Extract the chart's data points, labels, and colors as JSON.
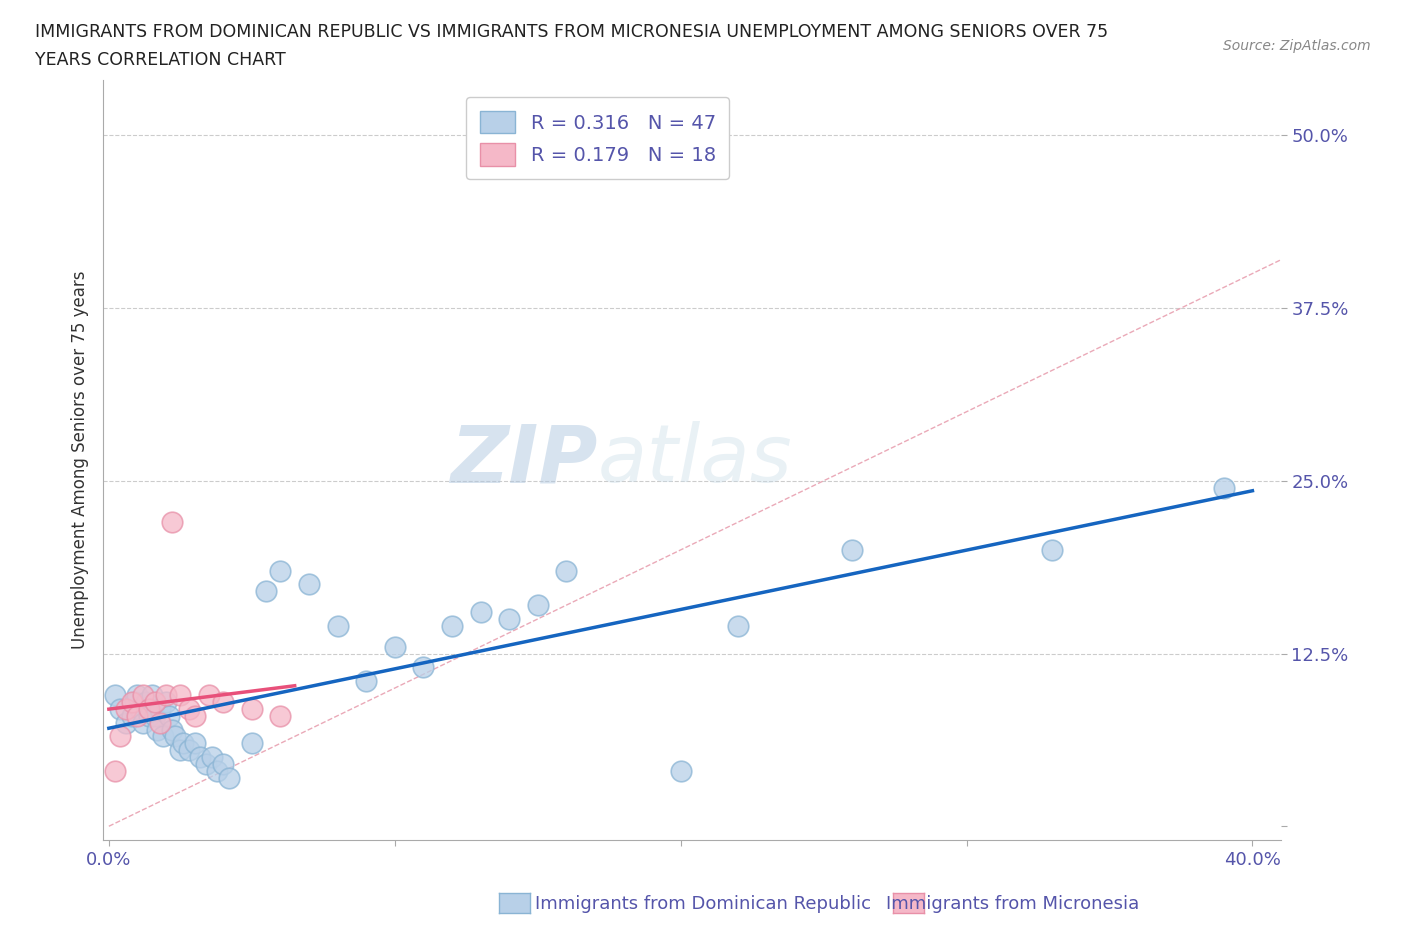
{
  "title_line1": "IMMIGRANTS FROM DOMINICAN REPUBLIC VS IMMIGRANTS FROM MICRONESIA UNEMPLOYMENT AMONG SENIORS OVER 75",
  "title_line2": "YEARS CORRELATION CHART",
  "source": "Source: ZipAtlas.com",
  "xlabel_blue": "Immigrants from Dominican Republic",
  "xlabel_pink": "Immigrants from Micronesia",
  "ylabel": "Unemployment Among Seniors over 75 years",
  "R_blue": 0.316,
  "N_blue": 47,
  "R_pink": 0.179,
  "N_pink": 18,
  "xlim": [
    -0.002,
    0.41
  ],
  "ylim": [
    -0.01,
    0.54
  ],
  "xticks": [
    0.0,
    0.1,
    0.2,
    0.3,
    0.4
  ],
  "yticks": [
    0.0,
    0.125,
    0.25,
    0.375,
    0.5
  ],
  "yticklabels": [
    "",
    "12.5%",
    "25.0%",
    "37.5%",
    "50.0%"
  ],
  "blue_fill": "#b8d0e8",
  "blue_edge": "#8ab4d4",
  "pink_fill": "#f5b8c8",
  "pink_edge": "#e890a8",
  "blue_line_color": "#1565c0",
  "pink_line_color": "#e8507a",
  "diagonal_color": "#e8a0b0",
  "grid_color": "#cccccc",
  "tick_color": "#5555aa",
  "watermark_zip": "ZIP",
  "watermark_atlas": "atlas",
  "blue_x": [
    0.002,
    0.004,
    0.006,
    0.008,
    0.009,
    0.01,
    0.011,
    0.012,
    0.013,
    0.014,
    0.015,
    0.016,
    0.017,
    0.018,
    0.019,
    0.02,
    0.021,
    0.022,
    0.023,
    0.025,
    0.026,
    0.028,
    0.03,
    0.032,
    0.034,
    0.036,
    0.038,
    0.04,
    0.042,
    0.05,
    0.055,
    0.06,
    0.07,
    0.08,
    0.09,
    0.1,
    0.11,
    0.12,
    0.13,
    0.14,
    0.15,
    0.16,
    0.2,
    0.22,
    0.26,
    0.33,
    0.39
  ],
  "blue_y": [
    0.095,
    0.085,
    0.075,
    0.08,
    0.09,
    0.095,
    0.085,
    0.075,
    0.09,
    0.08,
    0.095,
    0.08,
    0.07,
    0.085,
    0.065,
    0.09,
    0.08,
    0.07,
    0.065,
    0.055,
    0.06,
    0.055,
    0.06,
    0.05,
    0.045,
    0.05,
    0.04,
    0.045,
    0.035,
    0.06,
    0.17,
    0.185,
    0.175,
    0.145,
    0.105,
    0.13,
    0.115,
    0.145,
    0.155,
    0.15,
    0.16,
    0.185,
    0.04,
    0.145,
    0.2,
    0.2,
    0.245
  ],
  "pink_x": [
    0.002,
    0.004,
    0.006,
    0.008,
    0.01,
    0.012,
    0.014,
    0.016,
    0.018,
    0.02,
    0.022,
    0.025,
    0.028,
    0.03,
    0.035,
    0.04,
    0.05,
    0.06
  ],
  "pink_y": [
    0.04,
    0.065,
    0.085,
    0.09,
    0.08,
    0.095,
    0.085,
    0.09,
    0.075,
    0.095,
    0.22,
    0.095,
    0.085,
    0.08,
    0.095,
    0.09,
    0.085,
    0.08
  ]
}
